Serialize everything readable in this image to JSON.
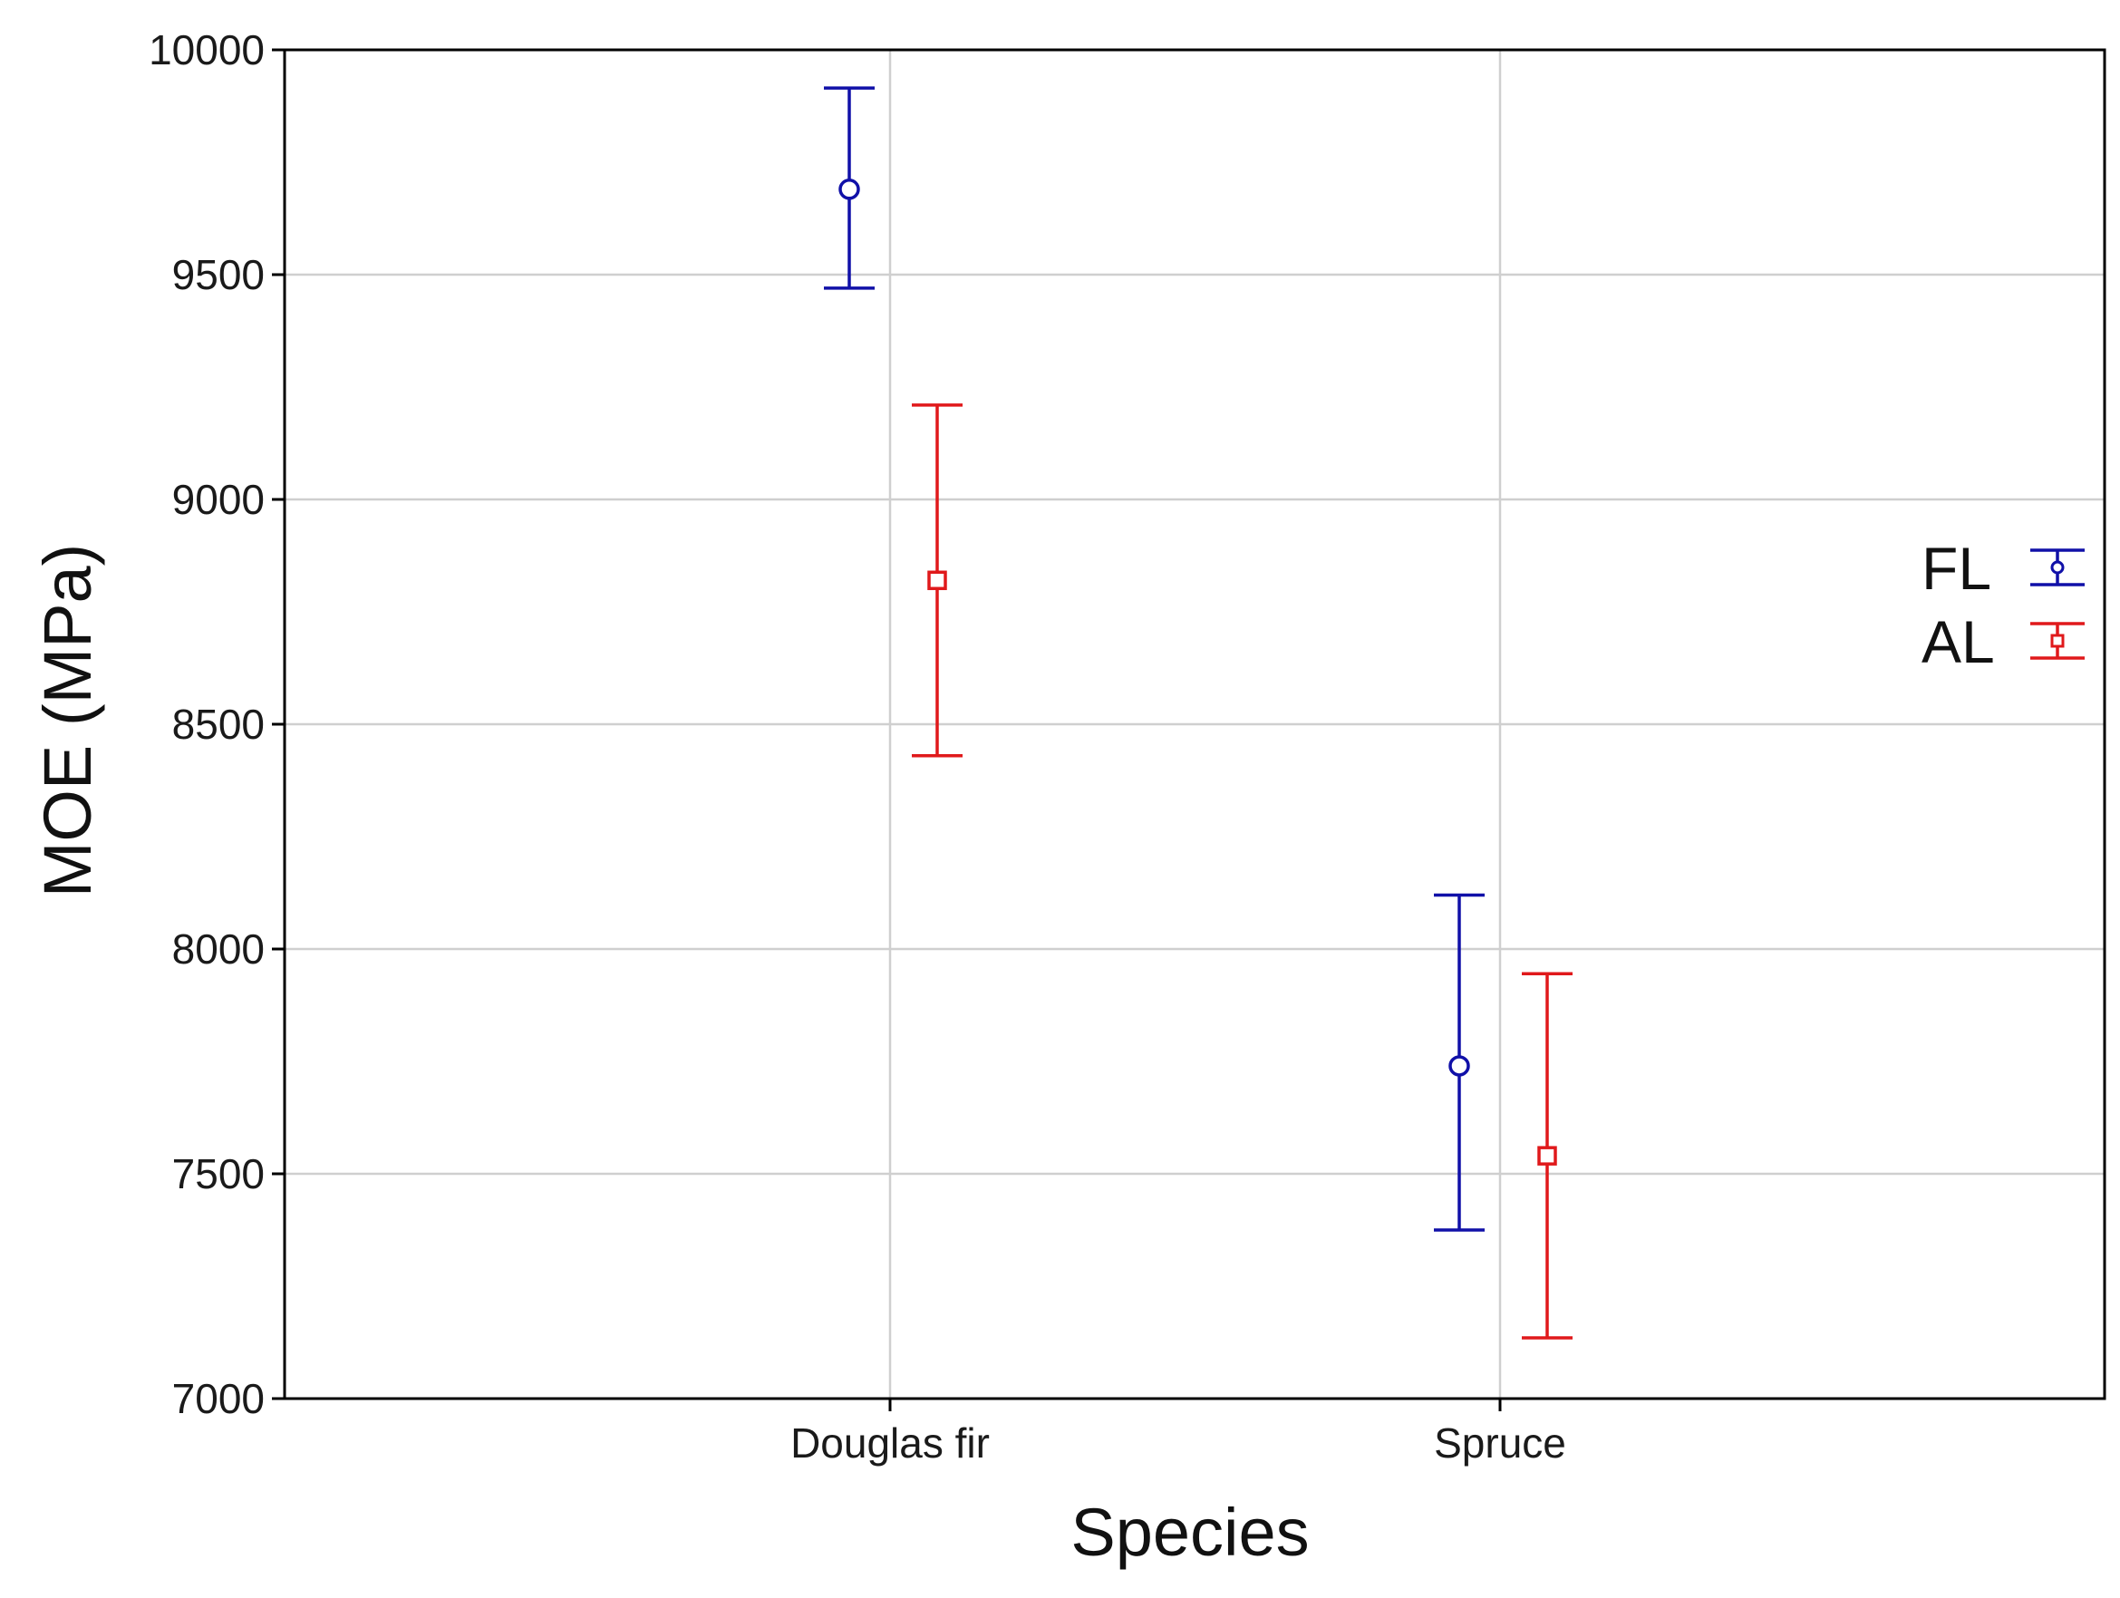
{
  "chart_data": {
    "type": "errorbar",
    "title": "",
    "xlabel": "Species",
    "ylabel": "MOE (MPa)",
    "categories": [
      "Douglas fir",
      "Spruce"
    ],
    "ylim": [
      7000,
      10000
    ],
    "yticks": [
      7000,
      7500,
      8000,
      8500,
      9000,
      9500,
      10000
    ],
    "grid": true,
    "legend_position": "right",
    "series": [
      {
        "name": "FL",
        "color": "#1010a8",
        "marker": "circle",
        "values": [
          9690,
          7740
        ],
        "lower": [
          9470,
          7375
        ],
        "upper": [
          9915,
          8120
        ]
      },
      {
        "name": "AL",
        "color": "#e0191b",
        "marker": "square",
        "values": [
          8820,
          7540
        ],
        "lower": [
          8430,
          7135
        ],
        "upper": [
          9210,
          7945
        ]
      }
    ]
  }
}
